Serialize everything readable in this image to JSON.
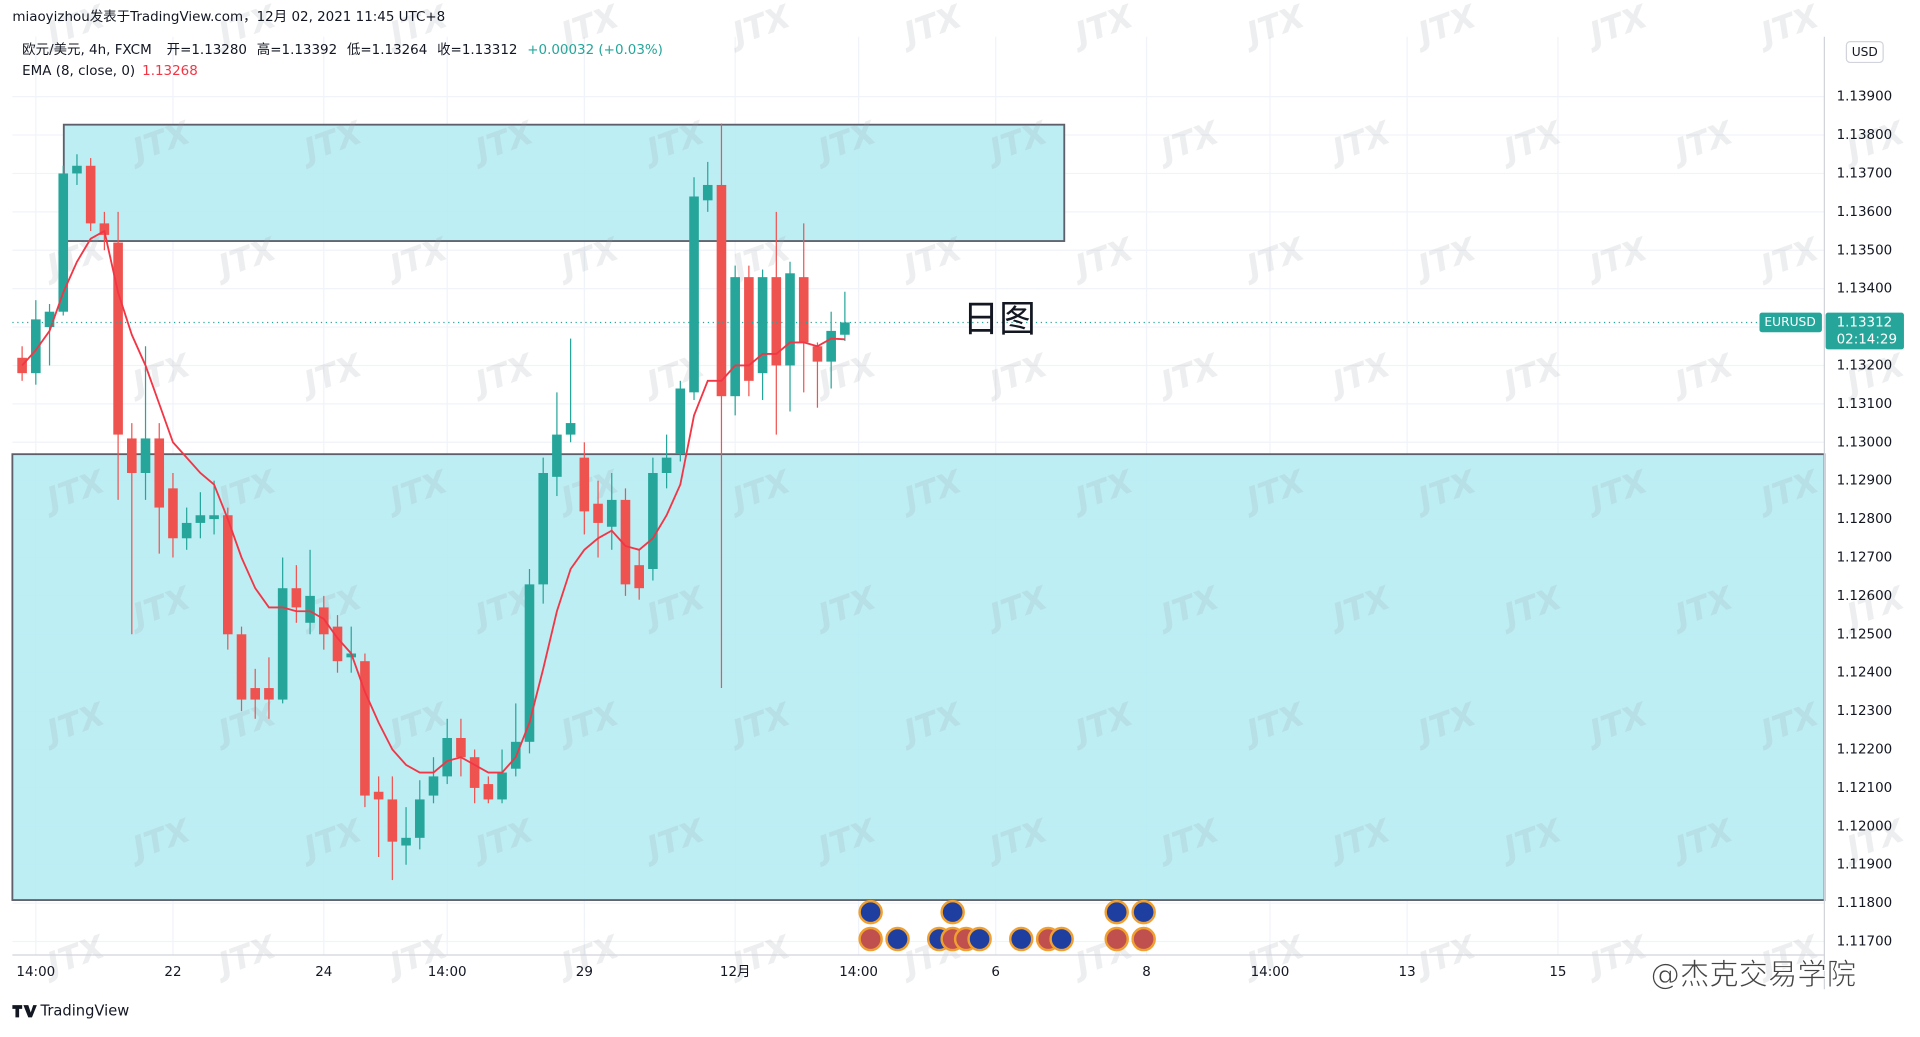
{
  "chart_data": {
    "type": "candlestick",
    "title": "miaoyizhou发表于TradingView.com，12月 02, 2021 11:45 UTC+8",
    "symbol_line": "欧元/美元, 4h, FXCM",
    "ohlc_labels": [
      "开=1.13280",
      "高=1.13392",
      "低=1.13264",
      "收=1.13312",
      "+0.00032 (+0.03%)"
    ],
    "series": [
      {
        "name": "EURUSD",
        "up_color": "#26a69a",
        "down_color": "#ef5350",
        "open": [
          1.1322,
          1.1318,
          1.133,
          1.1334,
          1.137,
          1.1372,
          1.1357,
          1.1352,
          1.1301,
          1.1292,
          1.1301,
          1.1288,
          1.1275,
          1.1279,
          1.128,
          1.1281,
          1.125,
          1.1236,
          1.1236,
          1.1233,
          1.1262,
          1.1253,
          1.1257,
          1.1252,
          1.1244,
          1.1243,
          1.1209,
          1.1207,
          1.1195,
          1.1197,
          1.1208,
          1.1213,
          1.1223,
          1.1218,
          1.1211,
          1.1207,
          1.1215,
          1.1222,
          1.1263,
          1.1291,
          1.1302,
          1.1296,
          1.1284,
          1.1278,
          1.1285,
          1.1268,
          1.1267,
          1.1292,
          1.1297,
          1.1313,
          1.1363,
          1.1367,
          1.1312,
          1.1343,
          1.1318,
          1.1343,
          1.132,
          1.1343,
          1.1325,
          1.1321,
          1.1328
        ],
        "high": [
          1.1325,
          1.1337,
          1.1336,
          1.1372,
          1.1375,
          1.1374,
          1.136,
          1.136,
          1.1305,
          1.1325,
          1.1305,
          1.1292,
          1.1283,
          1.1287,
          1.129,
          1.1283,
          1.1252,
          1.1241,
          1.1244,
          1.127,
          1.1268,
          1.1272,
          1.126,
          1.1255,
          1.1252,
          1.1245,
          1.1213,
          1.1213,
          1.1205,
          1.1212,
          1.1218,
          1.1228,
          1.1228,
          1.122,
          1.1213,
          1.122,
          1.1232,
          1.1267,
          1.1296,
          1.1313,
          1.1327,
          1.13,
          1.129,
          1.1292,
          1.1288,
          1.1272,
          1.1296,
          1.1302,
          1.1316,
          1.1369,
          1.1373,
          1.1383,
          1.1346,
          1.1346,
          1.1345,
          1.136,
          1.1347,
          1.1357,
          1.1326,
          1.1334,
          1.13392
        ],
        "low": [
          1.1316,
          1.1315,
          1.132,
          1.1333,
          1.1367,
          1.1355,
          1.135,
          1.1285,
          1.125,
          1.1285,
          1.1271,
          1.127,
          1.1272,
          1.1275,
          1.1276,
          1.1246,
          1.123,
          1.1228,
          1.1228,
          1.1232,
          1.1253,
          1.125,
          1.1246,
          1.124,
          1.124,
          1.1205,
          1.1192,
          1.1186,
          1.119,
          1.1194,
          1.1206,
          1.1211,
          1.1213,
          1.1206,
          1.1206,
          1.1206,
          1.1213,
          1.1219,
          1.1258,
          1.1286,
          1.13,
          1.1276,
          1.127,
          1.1272,
          1.126,
          1.1259,
          1.1264,
          1.1288,
          1.1295,
          1.1311,
          1.136,
          1.1236,
          1.1307,
          1.1312,
          1.1311,
          1.1302,
          1.1308,
          1.1313,
          1.1309,
          1.1314,
          1.13264
        ],
        "close": [
          1.1318,
          1.1332,
          1.1334,
          1.137,
          1.1372,
          1.1357,
          1.1354,
          1.1302,
          1.1292,
          1.1301,
          1.1283,
          1.1275,
          1.1279,
          1.1281,
          1.1281,
          1.125,
          1.1233,
          1.1233,
          1.1233,
          1.1262,
          1.1257,
          1.126,
          1.125,
          1.1243,
          1.1245,
          1.1208,
          1.1207,
          1.1196,
          1.1197,
          1.1207,
          1.1213,
          1.1223,
          1.1218,
          1.121,
          1.1207,
          1.1214,
          1.1222,
          1.1263,
          1.1292,
          1.1302,
          1.1305,
          1.1282,
          1.1279,
          1.1285,
          1.1263,
          1.1262,
          1.1292,
          1.1296,
          1.1314,
          1.1364,
          1.1367,
          1.1312,
          1.1343,
          1.1316,
          1.1343,
          1.132,
          1.1344,
          1.1326,
          1.1321,
          1.1329,
          1.13312
        ]
      },
      {
        "name": "EMA (8, close, 0)",
        "type": "line",
        "color": "#f23645",
        "last": 1.13268,
        "values": [
          1.132,
          1.1324,
          1.1329,
          1.1339,
          1.1347,
          1.1353,
          1.1355,
          1.1339,
          1.1328,
          1.132,
          1.131,
          1.13,
          1.1296,
          1.1292,
          1.1289,
          1.128,
          1.127,
          1.1262,
          1.1257,
          1.1257,
          1.1256,
          1.1256,
          1.1254,
          1.1249,
          1.1245,
          1.1235,
          1.1227,
          1.122,
          1.1216,
          1.1214,
          1.1214,
          1.1217,
          1.1218,
          1.1216,
          1.1214,
          1.1214,
          1.1218,
          1.1227,
          1.1241,
          1.1256,
          1.1267,
          1.1272,
          1.1275,
          1.1277,
          1.1273,
          1.1272,
          1.1275,
          1.1281,
          1.1289,
          1.1307,
          1.1316,
          1.1316,
          1.132,
          1.132,
          1.1323,
          1.1323,
          1.1326,
          1.1326,
          1.1325,
          1.1327,
          1.13268
        ]
      }
    ],
    "xlim": [
      -0.71,
      131.43
    ],
    "xticks": [
      {
        "value": 1,
        "label": "14:00"
      },
      {
        "value": 11,
        "label": "22"
      },
      {
        "value": 22,
        "label": "24"
      },
      {
        "value": 31,
        "label": "14:00"
      },
      {
        "value": 41,
        "label": "29"
      },
      {
        "value": 52,
        "label": "12月"
      },
      {
        "value": 61,
        "label": "14:00"
      },
      {
        "value": 71,
        "label": "6"
      },
      {
        "value": 82,
        "label": "8"
      },
      {
        "value": 91,
        "label": "14:00"
      },
      {
        "value": 101,
        "label": "13"
      },
      {
        "value": 112,
        "label": "15"
      }
    ],
    "ylim": [
      1.11665,
      1.14056
    ],
    "yticks": [
      {
        "value": 1.117,
        "label": "1.11700"
      },
      {
        "value": 1.118,
        "label": "1.11800"
      },
      {
        "value": 1.119,
        "label": "1.11900"
      },
      {
        "value": 1.12,
        "label": "1.12000"
      },
      {
        "value": 1.121,
        "label": "1.12100"
      },
      {
        "value": 1.122,
        "label": "1.12200"
      },
      {
        "value": 1.123,
        "label": "1.12300"
      },
      {
        "value": 1.124,
        "label": "1.12400"
      },
      {
        "value": 1.125,
        "label": "1.12500"
      },
      {
        "value": 1.126,
        "label": "1.12600"
      },
      {
        "value": 1.127,
        "label": "1.12700"
      },
      {
        "value": 1.128,
        "label": "1.12800"
      },
      {
        "value": 1.129,
        "label": "1.12900"
      },
      {
        "value": 1.13,
        "label": "1.13000"
      },
      {
        "value": 1.131,
        "label": "1.13100"
      },
      {
        "value": 1.132,
        "label": "1.13200"
      },
      {
        "value": 1.133,
        "label": "1.13300"
      },
      {
        "value": 1.134,
        "label": "1.13400"
      },
      {
        "value": 1.135,
        "label": "1.13500"
      },
      {
        "value": 1.136,
        "label": "1.13600"
      },
      {
        "value": 1.137,
        "label": "1.13700"
      },
      {
        "value": 1.138,
        "label": "1.13800"
      },
      {
        "value": 1.139,
        "label": "1.13900"
      }
    ],
    "grid": true,
    "zones": [
      {
        "x": [
          3.04,
          76.0
        ],
        "y": [
          1.13524,
          1.13827
        ],
        "color": "#b2ebf2"
      },
      {
        "x": [
          -0.71,
          131.43
        ],
        "y": [
          1.11808,
          1.12969
        ],
        "color": "#b2ebf2"
      }
    ],
    "last_price": {
      "symbol": "EURUSD",
      "value": 1.13312,
      "countdown": "02:14:29",
      "color": "#26a69a"
    },
    "currency": "USD",
    "annotation": "日图",
    "watermark": "JTX",
    "footer": "TradingView",
    "credit": "@杰克交易学院"
  }
}
